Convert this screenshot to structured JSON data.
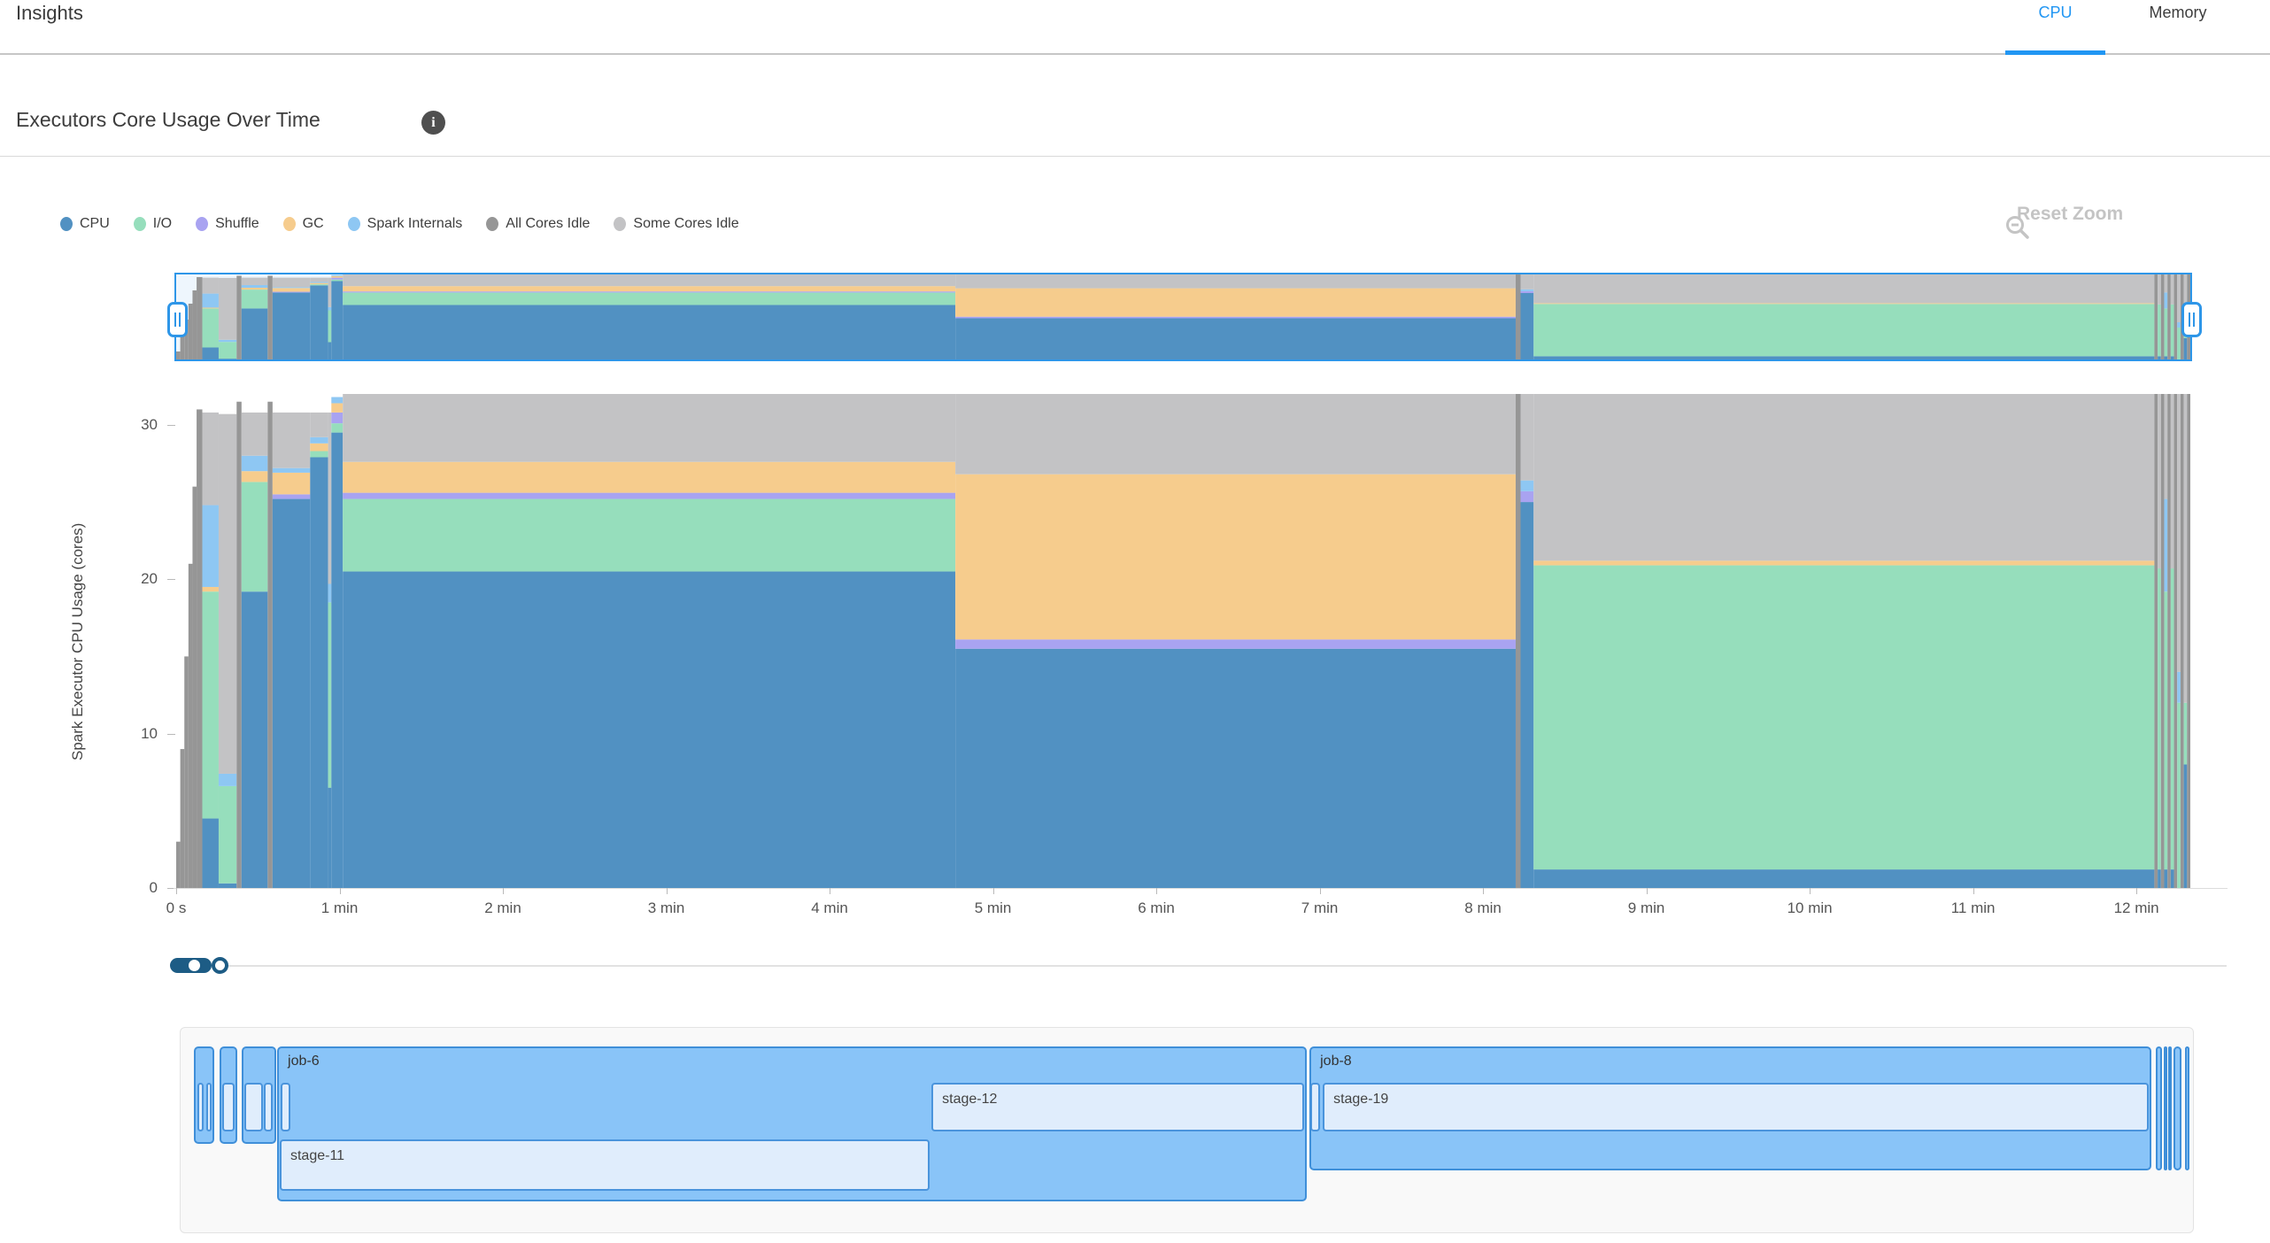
{
  "header": {
    "title": "Insights",
    "tabs": [
      {
        "label": "CPU",
        "active": true
      },
      {
        "label": "Memory",
        "active": false
      }
    ],
    "accent_color": "#2196f3"
  },
  "section": {
    "title": "Executors Core Usage Over Time",
    "info_icon": "i"
  },
  "toolbar": {
    "reset_zoom_label": "Reset Zoom",
    "reset_zoom_icon": "zoom-out-magnifier",
    "disabled_color": "#c4c4c4"
  },
  "legend": {
    "items": [
      {
        "key": "cpu",
        "label": "CPU"
      },
      {
        "key": "io",
        "label": "I/O"
      },
      {
        "key": "shuffle",
        "label": "Shuffle"
      },
      {
        "key": "gc",
        "label": "GC"
      },
      {
        "key": "spark",
        "label": "Spark Internals"
      },
      {
        "key": "all_idle",
        "label": "All Cores Idle"
      },
      {
        "key": "some_idle",
        "label": "Some Cores Idle"
      }
    ]
  },
  "chart_data": {
    "type": "area",
    "subtype": "stacked-step-area-with-brush",
    "title": "Executors Core Usage Over Time",
    "xlabel": "",
    "ylabel": "Spark Executor CPU Usage (cores)",
    "x_unit": "minutes",
    "xlim": [
      0,
      12.33
    ],
    "ylim": [
      0,
      32
    ],
    "grid": false,
    "legend_position": "top-left",
    "x_ticks": [
      "0 s",
      "1 min",
      "2 min",
      "3 min",
      "4 min",
      "5 min",
      "6 min",
      "7 min",
      "8 min",
      "9 min",
      "10 min",
      "11 min",
      "12 min"
    ],
    "x_tick_minutes": [
      0,
      1,
      2,
      3,
      4,
      5,
      6,
      7,
      8,
      9,
      10,
      11,
      12
    ],
    "y_ticks": [
      0,
      10,
      20,
      30
    ],
    "stack_order": [
      "cpu",
      "io",
      "shuffle",
      "gc",
      "spark",
      "all_idle",
      "some_idle"
    ],
    "colors": {
      "cpu": "#5191c2",
      "io": "#96debc",
      "shuffle": "#a9a3f1",
      "gc": "#f6cc8d",
      "spark": "#8ec7f3",
      "all_idle": "#969696",
      "some_idle": "#c3c3c5",
      "brush": "#2e96e8"
    },
    "segments": [
      {
        "t0": 0.0,
        "t1": 0.025,
        "all_idle": 3
      },
      {
        "t0": 0.025,
        "t1": 0.05,
        "all_idle": 9
      },
      {
        "t0": 0.05,
        "t1": 0.075,
        "all_idle": 15
      },
      {
        "t0": 0.075,
        "t1": 0.1,
        "all_idle": 21
      },
      {
        "t0": 0.1,
        "t1": 0.125,
        "all_idle": 26
      },
      {
        "t0": 0.125,
        "t1": 0.16,
        "all_idle": 31
      },
      {
        "t0": 0.16,
        "t1": 0.26,
        "cpu": 4.5,
        "io": 14.7,
        "gc": 0.3,
        "spark": 5.3,
        "some_idle": 6.0
      },
      {
        "t0": 0.26,
        "t1": 0.37,
        "cpu": 0.3,
        "io": 6.3,
        "spark": 0.8,
        "some_idle": 23.3
      },
      {
        "t0": 0.37,
        "t1": 0.4,
        "all_idle": 31.5
      },
      {
        "t0": 0.4,
        "t1": 0.56,
        "cpu": 19.2,
        "io": 7.1,
        "gc": 0.7,
        "spark": 1.0,
        "some_idle": 2.8
      },
      {
        "t0": 0.56,
        "t1": 0.59,
        "all_idle": 31.5
      },
      {
        "t0": 0.59,
        "t1": 0.82,
        "cpu": 25.2,
        "shuffle": 0.3,
        "gc": 1.4,
        "spark": 0.3,
        "some_idle": 3.6
      },
      {
        "t0": 0.82,
        "t1": 0.93,
        "cpu": 27.9,
        "io": 0.4,
        "gc": 0.5,
        "spark": 0.4,
        "some_idle": 1.6
      },
      {
        "t0": 0.93,
        "t1": 0.95,
        "cpu": 6.5,
        "io": 12.0,
        "spark": 1.2,
        "some_idle": 11.1
      },
      {
        "t0": 0.95,
        "t1": 1.02,
        "cpu": 29.5,
        "io": 0.6,
        "shuffle": 0.7,
        "gc": 0.6,
        "spark": 0.4
      },
      {
        "t0": 1.02,
        "t1": 4.77,
        "cpu": 20.5,
        "io": 4.7,
        "shuffle": 0.4,
        "gc": 2.0,
        "some_idle": 4.4
      },
      {
        "t0": 4.77,
        "t1": 8.2,
        "cpu": 15.5,
        "shuffle": 0.6,
        "gc": 10.7,
        "some_idle": 5.2
      },
      {
        "t0": 8.2,
        "t1": 8.23,
        "all_idle": 32
      },
      {
        "t0": 8.23,
        "t1": 8.31,
        "cpu": 25.0,
        "shuffle": 0.7,
        "spark": 0.7,
        "some_idle": 5.6
      },
      {
        "t0": 8.31,
        "t1": 12.11,
        "cpu": 1.2,
        "io": 19.7,
        "gc": 0.3,
        "some_idle": 10.8
      },
      {
        "t0": 12.11,
        "t1": 12.13,
        "all_idle": 32
      },
      {
        "t0": 12.13,
        "t1": 12.15,
        "cpu": 1.2,
        "io": 19.5,
        "some_idle": 11.3
      },
      {
        "t0": 12.15,
        "t1": 12.17,
        "all_idle": 32
      },
      {
        "t0": 12.17,
        "t1": 12.19,
        "cpu": 1.2,
        "io": 18.0,
        "spark": 6.0,
        "some_idle": 6.8
      },
      {
        "t0": 12.19,
        "t1": 12.21,
        "all_idle": 32
      },
      {
        "t0": 12.21,
        "t1": 12.23,
        "cpu": 1.2,
        "io": 19.5,
        "some_idle": 11.3
      },
      {
        "t0": 12.23,
        "t1": 12.25,
        "all_idle": 32
      },
      {
        "t0": 12.25,
        "t1": 12.27,
        "io": 12.0,
        "spark": 2.0,
        "some_idle": 18.0
      },
      {
        "t0": 12.27,
        "t1": 12.29,
        "all_idle": 32
      },
      {
        "t0": 12.29,
        "t1": 12.31,
        "cpu": 8.0,
        "io": 4.0,
        "some_idle": 20.0
      },
      {
        "t0": 12.31,
        "t1": 12.33,
        "all_idle": 32
      }
    ]
  },
  "gantt": {
    "jobs": [
      {
        "kind": "small",
        "label": "",
        "start_min": 0.11,
        "end_min": 0.235,
        "stages": [
          {
            "label": "",
            "start_min": 0.128,
            "end_min": 0.168,
            "row": 1
          },
          {
            "label": "",
            "start_min": 0.183,
            "end_min": 0.218,
            "row": 1
          }
        ]
      },
      {
        "kind": "small",
        "label": "",
        "start_min": 0.266,
        "end_min": 0.374,
        "stages": [
          {
            "label": "",
            "start_min": 0.282,
            "end_min": 0.358,
            "row": 1
          }
        ]
      },
      {
        "kind": "small",
        "label": "",
        "start_min": 0.401,
        "end_min": 0.612,
        "stages": [
          {
            "label": "",
            "start_min": 0.417,
            "end_min": 0.531,
            "row": 1
          },
          {
            "label": "",
            "start_min": 0.537,
            "end_min": 0.591,
            "row": 1
          }
        ]
      },
      {
        "kind": "tall",
        "label": "job-6",
        "start_min": 0.618,
        "end_min": 6.922,
        "stages": [
          {
            "label": "",
            "start_min": 0.64,
            "end_min": 0.699,
            "row": 1
          },
          {
            "label": "stage-12",
            "start_min": 4.624,
            "end_min": 6.906,
            "row": 1
          },
          {
            "label": "stage-11",
            "start_min": 0.634,
            "end_min": 4.613,
            "row": 2
          }
        ]
      },
      {
        "kind": "medium",
        "label": "job-8",
        "start_min": 6.938,
        "end_min": 12.093,
        "stages": [
          {
            "label": "",
            "start_min": 6.944,
            "end_min": 7.003,
            "row": 1
          },
          {
            "label": "stage-19",
            "start_min": 7.019,
            "end_min": 12.077,
            "row": 1
          }
        ]
      },
      {
        "kind": "stripe",
        "label": "",
        "start_min": 12.12,
        "end_min": 12.155,
        "stages": []
      },
      {
        "kind": "stripe",
        "label": "",
        "start_min": 12.165,
        "end_min": 12.185,
        "stages": []
      },
      {
        "kind": "stripe",
        "label": "",
        "start_min": 12.195,
        "end_min": 12.215,
        "stages": []
      },
      {
        "kind": "stripe",
        "label": "",
        "start_min": 12.225,
        "end_min": 12.275,
        "stages": []
      },
      {
        "kind": "stripe",
        "label": "",
        "start_min": 12.3,
        "end_min": 12.325,
        "stages": []
      }
    ]
  }
}
